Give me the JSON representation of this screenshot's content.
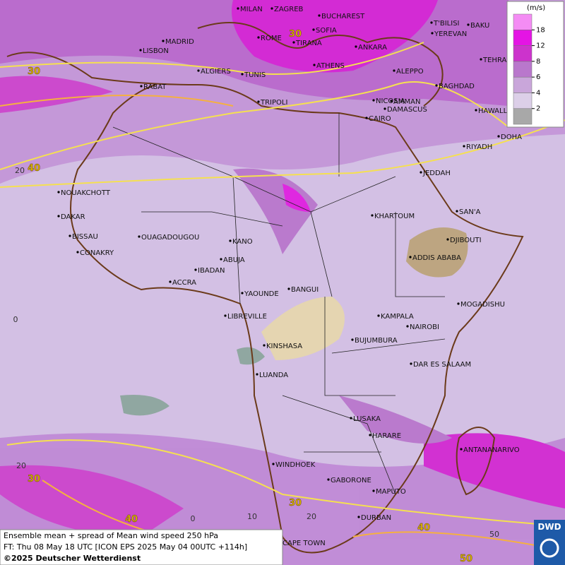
{
  "header": {
    "unit": "(m/s)",
    "logo": "DWD"
  },
  "legend": {
    "values": [
      2,
      4,
      6,
      8,
      12,
      18
    ],
    "colors": [
      "#a8a8a8",
      "#dccfe8",
      "#c9a6da",
      "#b977cc",
      "#cc33cc",
      "#e414e4",
      "#f48cf4"
    ]
  },
  "grid_labels": {
    "latitudes": [
      "20",
      "0",
      "20"
    ],
    "longitudes": [
      "0",
      "10",
      "20",
      "50"
    ]
  },
  "contour_labels": [
    30,
    30,
    40,
    30,
    40,
    30,
    40,
    50
  ],
  "cities": [
    "MILAN",
    "ZAGREB",
    "BUCHAREST",
    "T'BILISI",
    "BAKU",
    "YEREVAN",
    "TEHRA",
    "MADRID",
    "ROME",
    "SOFIA",
    "LISBON",
    "TIRANA",
    "ANKARA",
    "ALGIERS",
    "TUNIS",
    "ATHENS",
    "ALEPPO",
    "RABAT",
    "NICOSIA",
    "BAGHDAD",
    "DAMASCUS",
    "AMMAN",
    "TRIPOLI",
    "HAWALLI",
    "CAIRO",
    "DOHA",
    "RIYADH",
    "JEDDAH",
    "NOUAKCHOTT",
    "SAN'A",
    "DAKAR",
    "KHARTOUM",
    "BISSAU",
    "OUAGADOUGOU",
    "DJIBOUTI",
    "CONAKRY",
    "KANO",
    "ADDIS ABABA",
    "ABUJA",
    "IBADAN",
    "ACCRA",
    "YAOUNDE",
    "BANGUI",
    "MOGADISHU",
    "LIBREVILLE",
    "KAMPALA",
    "NAIROBI",
    "KINSHASA",
    "BUJUMBURA",
    "DAR ES SALAAM",
    "LUANDA",
    "LUSAKA",
    "HARARE",
    "ANTANANARIVO",
    "WINDHOEK",
    "GABORONE",
    "MAPUTO",
    "DURBAN",
    "CAPE TOWN"
  ],
  "caption": [
    "Ensemble mean + spread of Mean wind speed 250 hPa",
    "FT: Thu 08 May 18 UTC [ICON EPS 2025 May 04 00UTC +114h]",
    "©2025 Deutscher Wetterdienst"
  ]
}
